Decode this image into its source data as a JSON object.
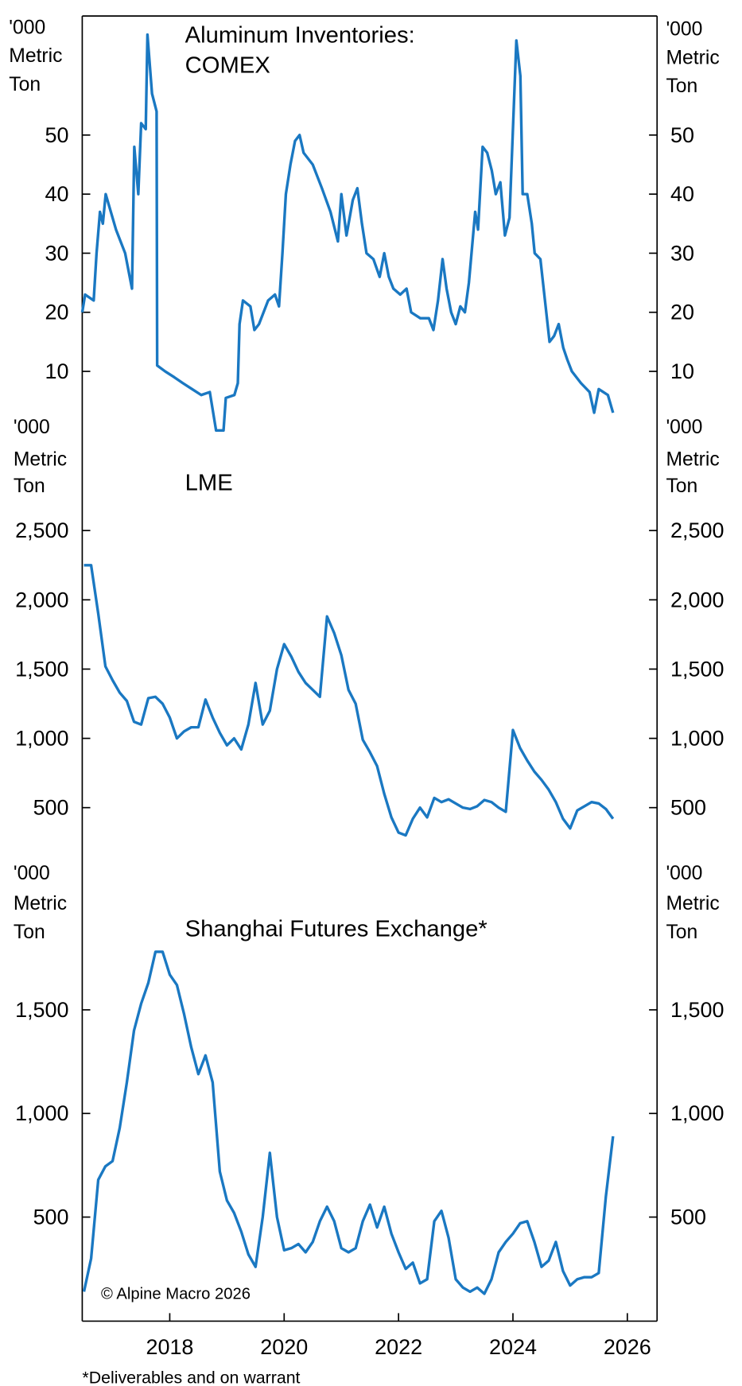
{
  "chart_data": [
    {
      "type": "line",
      "title": [
        "Aluminum Inventories:",
        "COMEX"
      ],
      "y_label": [
        "'000",
        "Metric",
        "Ton"
      ],
      "color": "#1a78c2",
      "x": [
        2016.47,
        2016.52,
        2016.67,
        2016.72,
        2016.78,
        2016.83,
        2016.88,
        2016.94,
        2017.06,
        2017.22,
        2017.34,
        2017.38,
        2017.45,
        2017.5,
        2017.58,
        2017.61,
        2017.69,
        2017.77,
        2017.78,
        2017.92,
        2018.08,
        2018.23,
        2018.39,
        2018.55,
        2018.7,
        2018.81,
        2018.94,
        2018.98,
        2019.13,
        2019.19,
        2019.22,
        2019.28,
        2019.41,
        2019.48,
        2019.56,
        2019.72,
        2019.84,
        2019.91,
        2019.97,
        2020.03,
        2020.11,
        2020.19,
        2020.27,
        2020.34,
        2020.5,
        2020.66,
        2020.81,
        2020.94,
        2021,
        2021.09,
        2021.2,
        2021.28,
        2021.36,
        2021.44,
        2021.56,
        2021.67,
        2021.75,
        2021.83,
        2021.91,
        2022.03,
        2022.14,
        2022.22,
        2022.38,
        2022.53,
        2022.61,
        2022.69,
        2022.77,
        2022.84,
        2022.92,
        2023,
        2023.08,
        2023.16,
        2023.23,
        2023.34,
        2023.39,
        2023.47,
        2023.55,
        2023.63,
        2023.7,
        2023.78,
        2023.86,
        2023.94,
        2024.06,
        2024.13,
        2024.17,
        2024.25,
        2024.33,
        2024.38,
        2024.48,
        2024.56,
        2024.64,
        2024.72,
        2024.8,
        2024.88,
        2024.95,
        2025.03,
        2025.19,
        2025.34,
        2025.42,
        2025.5,
        2025.66,
        2025.75
      ],
      "values": [
        20,
        23,
        22,
        30,
        37,
        35,
        40,
        38,
        34,
        30,
        24,
        48,
        40,
        52,
        51,
        67,
        57,
        54,
        11,
        10,
        9,
        8,
        7,
        6,
        6.5,
        0,
        0,
        5.5,
        6,
        8,
        18,
        22,
        21,
        17,
        18,
        22,
        23,
        21,
        30,
        40,
        45,
        49,
        50,
        47,
        45,
        41,
        37,
        32,
        40,
        33,
        39,
        41,
        35,
        30,
        29,
        26,
        30,
        26,
        24,
        23,
        24,
        20,
        19,
        19,
        17,
        22,
        29,
        24,
        20,
        18,
        21,
        20,
        25,
        37,
        34,
        48,
        47,
        44,
        40,
        42,
        33,
        36,
        66,
        60,
        40,
        40,
        35,
        30,
        29,
        22,
        15,
        16,
        18,
        14,
        12,
        10,
        8,
        6.5,
        3,
        7,
        6,
        3
      ],
      "xlim": [
        2016.47,
        2026.52
      ],
      "ylim": [
        0,
        70
      ],
      "yticks": [
        10,
        20,
        30,
        40,
        50
      ]
    },
    {
      "type": "line",
      "title": [
        "LME"
      ],
      "y_label": [
        "'000",
        "Metric",
        "Ton"
      ],
      "color": "#1a78c2",
      "x": [
        2016.5,
        2016.625,
        2016.75,
        2016.875,
        2017,
        2017.125,
        2017.25,
        2017.375,
        2017.5,
        2017.625,
        2017.75,
        2017.875,
        2018,
        2018.125,
        2018.25,
        2018.375,
        2018.5,
        2018.625,
        2018.75,
        2018.875,
        2019,
        2019.125,
        2019.25,
        2019.375,
        2019.5,
        2019.625,
        2019.75,
        2019.875,
        2020,
        2020.125,
        2020.25,
        2020.375,
        2020.5,
        2020.625,
        2020.75,
        2020.875,
        2021,
        2021.125,
        2021.25,
        2021.375,
        2021.5,
        2021.625,
        2021.75,
        2021.875,
        2022,
        2022.125,
        2022.25,
        2022.375,
        2022.5,
        2022.625,
        2022.75,
        2022.875,
        2023,
        2023.125,
        2023.25,
        2023.375,
        2023.5,
        2023.625,
        2023.75,
        2023.875,
        2024,
        2024.125,
        2024.25,
        2024.375,
        2024.5,
        2024.625,
        2024.75,
        2024.875,
        2025,
        2025.125,
        2025.25,
        2025.375,
        2025.5,
        2025.625,
        2025.75
      ],
      "values": [
        2250,
        2250,
        1900,
        1520,
        1420,
        1330,
        1270,
        1120,
        1100,
        1290,
        1300,
        1250,
        1150,
        1000,
        1050,
        1080,
        1080,
        1280,
        1150,
        1040,
        950,
        1000,
        920,
        1100,
        1400,
        1100,
        1200,
        1500,
        1680,
        1590,
        1480,
        1400,
        1350,
        1300,
        1880,
        1760,
        1600,
        1350,
        1250,
        990,
        900,
        800,
        600,
        430,
        320,
        300,
        420,
        500,
        430,
        570,
        540,
        560,
        530,
        500,
        490,
        510,
        555,
        540,
        500,
        470,
        1060,
        930,
        840,
        760,
        700,
        630,
        540,
        420,
        350,
        480,
        510,
        540,
        530,
        490,
        420
      ],
      "xlim": [
        2016.47,
        2026.52
      ],
      "ylim": [
        0,
        3200
      ],
      "yticks": [
        {
          "value": 500,
          "label": "500"
        },
        {
          "value": 1000,
          "label": "1,000"
        },
        {
          "value": 1500,
          "label": "1,500"
        },
        {
          "value": 2000,
          "label": "2,000"
        },
        {
          "value": 2500,
          "label": "2,500"
        }
      ]
    },
    {
      "type": "line",
      "title": [
        "Shanghai Futures Exchange*"
      ],
      "y_label": [
        "'000",
        "Metric",
        "Ton"
      ],
      "color": "#1a78c2",
      "x": [
        2016.5,
        2016.625,
        2016.75,
        2016.875,
        2017,
        2017.125,
        2017.25,
        2017.375,
        2017.5,
        2017.625,
        2017.75,
        2017.875,
        2018,
        2018.125,
        2018.25,
        2018.375,
        2018.5,
        2018.625,
        2018.75,
        2018.875,
        2019,
        2019.125,
        2019.25,
        2019.375,
        2019.5,
        2019.625,
        2019.75,
        2019.875,
        2020,
        2020.125,
        2020.25,
        2020.375,
        2020.5,
        2020.625,
        2020.75,
        2020.875,
        2021,
        2021.125,
        2021.25,
        2021.375,
        2021.5,
        2021.625,
        2021.75,
        2021.875,
        2022,
        2022.125,
        2022.25,
        2022.375,
        2022.5,
        2022.625,
        2022.75,
        2022.875,
        2023,
        2023.125,
        2023.25,
        2023.375,
        2023.5,
        2023.625,
        2023.75,
        2023.875,
        2024,
        2024.125,
        2024.25,
        2024.375,
        2024.5,
        2024.625,
        2024.75,
        2024.875,
        2025,
        2025.125,
        2025.25,
        2025.375,
        2025.5,
        2025.625,
        2025.75
      ],
      "values": [
        140,
        300,
        680,
        745,
        770,
        930,
        1150,
        1400,
        1530,
        1630,
        1780,
        1780,
        1670,
        1620,
        1480,
        1320,
        1190,
        1280,
        1150,
        720,
        580,
        520,
        430,
        320,
        260,
        500,
        810,
        500,
        340,
        350,
        370,
        330,
        380,
        480,
        550,
        480,
        350,
        330,
        350,
        480,
        560,
        450,
        550,
        420,
        330,
        250,
        280,
        180,
        200,
        480,
        530,
        400,
        200,
        160,
        140,
        160,
        130,
        200,
        330,
        380,
        420,
        470,
        480,
        380,
        260,
        290,
        380,
        240,
        170,
        200,
        210,
        210,
        230,
        600,
        890
      ],
      "xlim": [
        2016.47,
        2026.52
      ],
      "ylim": [
        0,
        2150
      ],
      "yticks": [
        {
          "value": 500,
          "label": "500"
        },
        {
          "value": 1000,
          "label": "1,000"
        },
        {
          "value": 1500,
          "label": "1,500"
        }
      ],
      "xticks": [
        2018,
        2020,
        2022,
        2024,
        2026
      ],
      "annotation": "© Alpine Macro 2026",
      "footnote": "*Deliverables and on warrant"
    }
  ]
}
